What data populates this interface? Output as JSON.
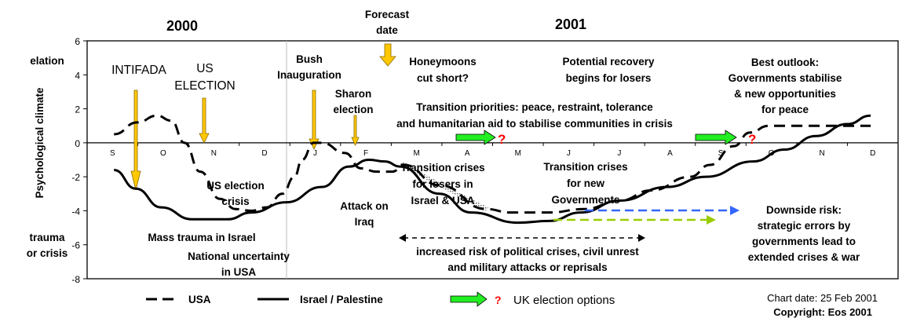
{
  "chart_data": {
    "type": "line",
    "title": "",
    "ylabel": "Psychological climate",
    "ylabel_top": "elation",
    "ylabel_bottom": [
      "trauma",
      "or crisis"
    ],
    "ylim": [
      -8,
      6
    ],
    "yticks": [
      "6",
      "4",
      "2",
      "0",
      "-2",
      "-4",
      "-6",
      "-8"
    ],
    "ytick_values": [
      6,
      4,
      2,
      0,
      -2,
      -4,
      -6,
      -8
    ],
    "years": [
      "2000",
      "2001"
    ],
    "months": [
      "S",
      "O",
      "N",
      "D",
      "J",
      "F",
      "M",
      "A",
      "M",
      "J",
      "J",
      "A",
      "S",
      "O",
      "N",
      "D"
    ],
    "x_unit": "months since 1 Sep 2000",
    "series": [
      {
        "name": "USA",
        "style": "dashed",
        "x": [
          0.53,
          0.99,
          1.38,
          1.66,
          1.92,
          2.23,
          2.62,
          2.93,
          3.24,
          3.54,
          3.85,
          4.09,
          4.24,
          4.47,
          4.63,
          5.09,
          5.4,
          5.71,
          6.02,
          6.25,
          6.95,
          7.88,
          8.34,
          9.12,
          9.81,
          10.51,
          11.13,
          11.9,
          12.29,
          12.76,
          13.07,
          13.45,
          14.07,
          15.46
        ],
        "values": [
          0.5,
          1.2,
          1.6,
          1.3,
          0,
          -1.7,
          -3.3,
          -3.9,
          -4.0,
          -3.8,
          -3.0,
          -2.0,
          -1.0,
          0,
          0,
          -0.6,
          -1.5,
          -1.7,
          -1.7,
          -1.3,
          -2.5,
          -3.9,
          -4.1,
          -4.1,
          -3.9,
          -3.4,
          -2.8,
          -2.0,
          -1.3,
          -0.2,
          0.6,
          1.0,
          1.0,
          1.0
        ]
      },
      {
        "name": "Israel / Palestine",
        "style": "solid",
        "x": [
          0.53,
          0.96,
          1.46,
          2.07,
          2.77,
          3.24,
          3.93,
          4.63,
          5.17,
          5.56,
          5.87,
          6.18,
          6.95,
          7.57,
          8.5,
          9.12,
          9.74,
          10.51,
          11.44,
          12.21,
          13.14,
          13.76,
          14.38,
          15.0,
          15.46
        ],
        "values": [
          -1.6,
          -2.7,
          -3.8,
          -4.5,
          -4.5,
          -4.1,
          -3.5,
          -2.6,
          -1.4,
          -1.0,
          -1.1,
          -1.4,
          -3.0,
          -4.1,
          -4.7,
          -4.6,
          -4.1,
          -3.4,
          -2.6,
          -2.0,
          -1.1,
          -0.4,
          0.4,
          1.1,
          1.6
        ]
      }
    ],
    "legend": {
      "usa": "USA",
      "israel": "Israel / Palestine",
      "uk": "UK election options",
      "question": "?",
      "placement": "bottom"
    },
    "colors": {
      "event_arrow": "#FFC800",
      "uk_arrow": "#22EE22",
      "question": "#FF0000",
      "downside_blue": "#3366FF",
      "downside_green": "#99CC00"
    }
  },
  "annotations": {
    "forecast": [
      "Forecast",
      "date"
    ],
    "intifada": "INTIFADA",
    "us_election": [
      "US",
      "ELECTION"
    ],
    "bush": [
      "Bush",
      "Inauguration"
    ],
    "sharon": [
      "Sharon",
      "election"
    ],
    "honeymoons": [
      "Honeymoons",
      "cut short?"
    ],
    "recovery": [
      "Potential recovery",
      "begins for losers"
    ],
    "best": [
      "Best outlook:",
      "Governments stabilise",
      "& new opportunities",
      "for  peace"
    ],
    "priorities": [
      "Transition priorities: peace, restraint, tolerance",
      "and humanitarian aid to stabilise communities in crisis"
    ],
    "us_crisis": [
      "US election",
      "crisis"
    ],
    "attack": [
      "Attack on",
      "Iraq"
    ],
    "transition_losers": [
      "Transition crises",
      "for losers in",
      "Israel & USA"
    ],
    "transition_new": [
      "Transition crises",
      "for new",
      "Governments"
    ],
    "downside": [
      "Downside risk:",
      "strategic errors by",
      "governments lead to",
      "extended crises & war"
    ],
    "mass_trauma": "Mass trauma in Israel",
    "uncertainty": [
      "National uncertainty",
      "in USA"
    ],
    "increased": [
      "increased risk of political crises, civil unrest",
      "and military attacks or reprisals"
    ]
  },
  "footer": {
    "chart_date": "Chart date: 25 Feb 2001",
    "copyright": "Copyright: Eos 2001"
  }
}
